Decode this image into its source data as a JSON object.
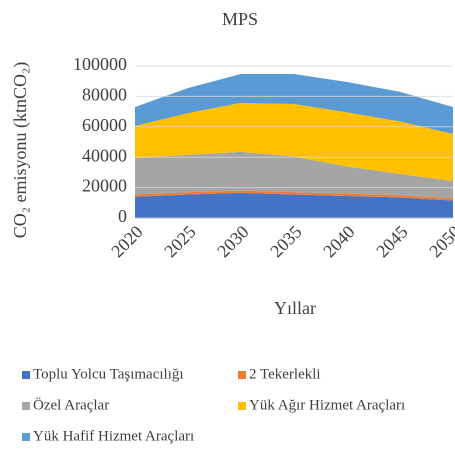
{
  "chart_data": {
    "type": "stacked_area",
    "title": "MPS",
    "x_label": "Yıllar",
    "y_label": "CO₂ emisyonu (ktnCO₂)",
    "categories": [
      "2020",
      "2025",
      "2030",
      "2035",
      "2040",
      "2045",
      "2050"
    ],
    "series": [
      {
        "name": "Toplu Yolcu Taşımacılığı",
        "color": "#4472c4",
        "values": [
          14000,
          15500,
          16500,
          15500,
          14500,
          13500,
          11500
        ]
      },
      {
        "name": "2 Tekerlekli",
        "color": "#ed7d31",
        "values": [
          1500,
          1500,
          1500,
          1500,
          1500,
          1500,
          1500
        ]
      },
      {
        "name": "Özel Araçlar",
        "color": "#a5a5a5",
        "values": [
          24000,
          24500,
          25500,
          23500,
          18000,
          14000,
          11300
        ]
      },
      {
        "name": "Yük Ağır Hizmet Araçları",
        "color": "#ffc000",
        "values": [
          21000,
          27500,
          32200,
          34500,
          35500,
          34500,
          31000
        ]
      },
      {
        "name": "Yük Hafif Hizmet Araçları",
        "color": "#5b9bd5",
        "values": [
          12500,
          16500,
          19000,
          19700,
          20000,
          19500,
          17700
        ]
      }
    ],
    "ylim": [
      0,
      100000
    ],
    "yticks": [
      0,
      20000,
      40000,
      60000,
      80000,
      100000
    ],
    "grid": true,
    "legend": "bottom"
  }
}
